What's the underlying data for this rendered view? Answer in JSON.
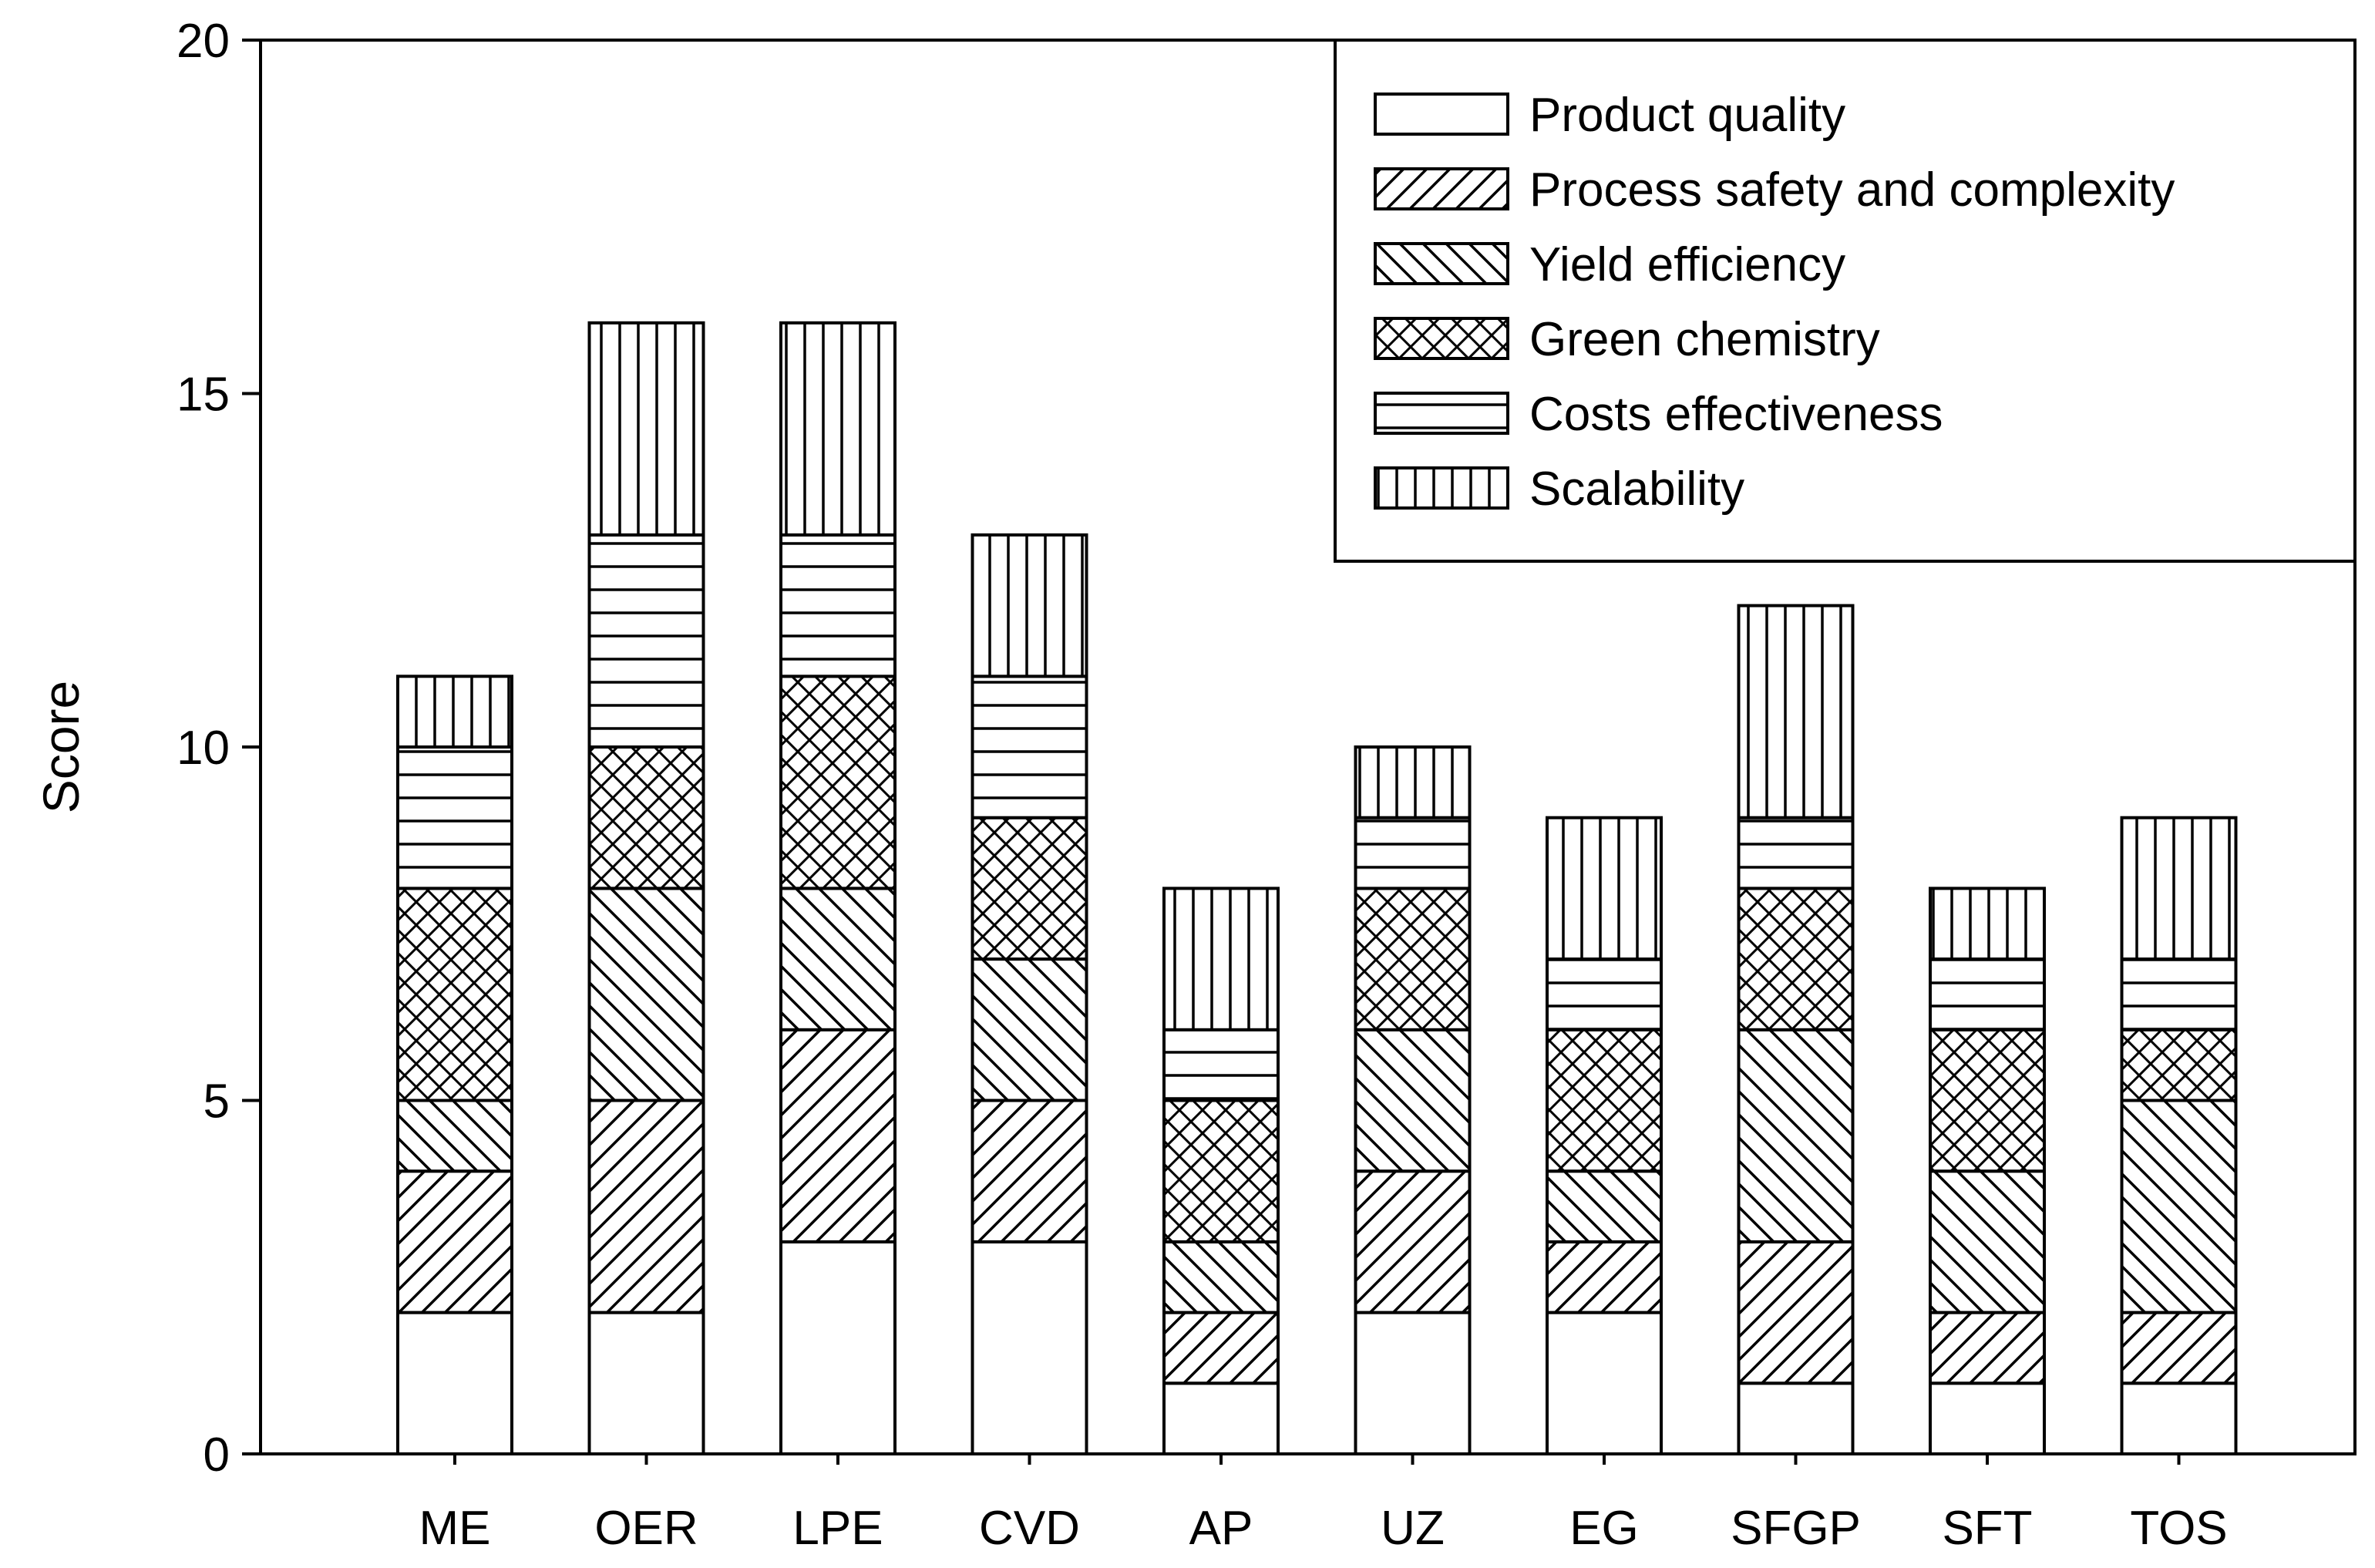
{
  "chart_data": {
    "type": "bar",
    "stacked": true,
    "title": "",
    "xlabel": "",
    "ylabel": "Score",
    "ylim": [
      0,
      20
    ],
    "yticks": [
      0,
      5,
      10,
      15,
      20
    ],
    "legend_position": "top-right",
    "categories": [
      "ME",
      "OER",
      "LPE",
      "CVD",
      "AP",
      "UZ",
      "EG",
      "SFGP",
      "SFT",
      "TOS"
    ],
    "series": [
      {
        "name": "Product quality",
        "pattern": "blank",
        "values": [
          2,
          2,
          3,
          3,
          1,
          2,
          2,
          1,
          1,
          1
        ]
      },
      {
        "name": "Process safety and complexity",
        "pattern": "diagonal-up",
        "values": [
          2,
          3,
          3,
          2,
          1,
          2,
          1,
          2,
          1,
          1
        ]
      },
      {
        "name": "Yield efficiency",
        "pattern": "diagonal-down",
        "values": [
          1,
          3,
          2,
          2,
          1,
          2,
          1,
          3,
          2,
          3
        ]
      },
      {
        "name": "Green chemistry",
        "pattern": "crosshatch",
        "values": [
          3,
          2,
          3,
          2,
          2,
          2,
          2,
          2,
          2,
          1
        ]
      },
      {
        "name": "Costs effectiveness",
        "pattern": "horizontal",
        "values": [
          2,
          3,
          2,
          2,
          1,
          1,
          1,
          1,
          1,
          1
        ]
      },
      {
        "name": "Scalability",
        "pattern": "vertical",
        "values": [
          1,
          3,
          3,
          2,
          2,
          1,
          2,
          3,
          1,
          2
        ]
      }
    ],
    "colors": {
      "stroke": "#000000",
      "fill": "#ffffff"
    }
  }
}
